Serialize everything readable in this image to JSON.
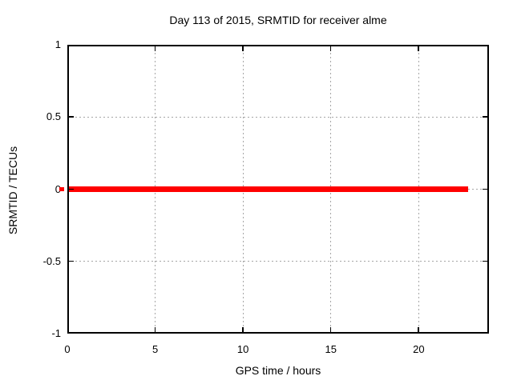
{
  "chart_data": {
    "type": "line",
    "title": "Day 113 of 2015, SRMTID for receiver alme",
    "xlabel": "GPS time / hours",
    "ylabel": "SRMTID / TECUs",
    "xlim": [
      0,
      24
    ],
    "ylim": [
      -1,
      1
    ],
    "xticks": [
      0,
      5,
      10,
      15,
      20
    ],
    "yticks": [
      1,
      0.5,
      0,
      -0.5,
      -1
    ],
    "xtick_labels": [
      "0",
      "5",
      "10",
      "15",
      "20"
    ],
    "ytick_labels": [
      "1",
      "0.5",
      "0",
      "-0.5",
      "-1"
    ],
    "grid": true,
    "grid_style": "dotted",
    "tics_mirrored": true,
    "legend_position": "none",
    "series": [
      {
        "name": "SRMTID",
        "color": "#ff0000",
        "x": [
          0,
          22.8
        ],
        "y": [
          0,
          0
        ],
        "line_thickness_px": 7
      }
    ],
    "colors": {
      "line": "#ff0000",
      "grid": "#a6a6a6",
      "border": "#000000",
      "text": "#000000",
      "background": "#ffffff"
    }
  }
}
